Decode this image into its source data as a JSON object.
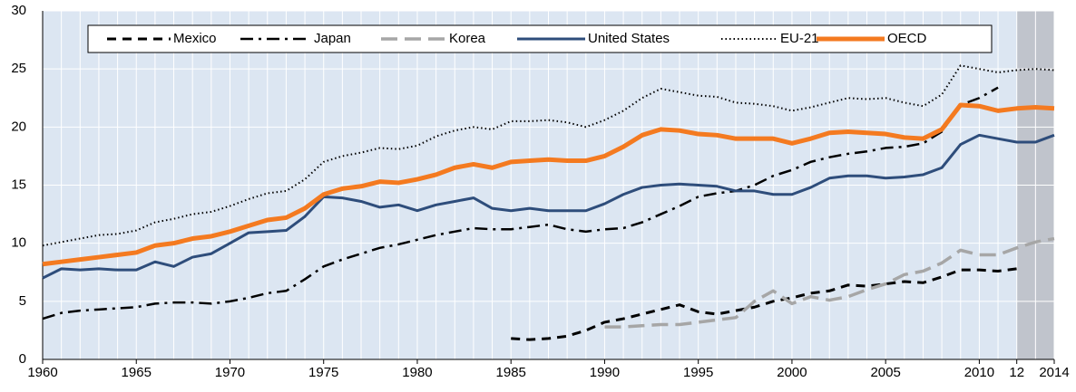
{
  "chart_data": {
    "type": "line",
    "x": [
      1960,
      1961,
      1962,
      1963,
      1964,
      1965,
      1966,
      1967,
      1968,
      1969,
      1970,
      1971,
      1972,
      1973,
      1974,
      1975,
      1976,
      1977,
      1978,
      1979,
      1980,
      1981,
      1982,
      1983,
      1984,
      1985,
      1986,
      1987,
      1988,
      1989,
      1990,
      1991,
      1992,
      1993,
      1994,
      1995,
      1996,
      1997,
      1998,
      1999,
      2000,
      2001,
      2002,
      2003,
      2004,
      2005,
      2006,
      2007,
      2008,
      2009,
      2010,
      2011,
      2012,
      2013,
      2014
    ],
    "xlim": [
      1960,
      2014
    ],
    "xticks": [
      1960,
      1965,
      1970,
      1975,
      1980,
      1985,
      1990,
      1995,
      2000,
      2005,
      2010,
      {
        "value": 2012,
        "label": "12"
      },
      2014
    ],
    "ylim": [
      0,
      30
    ],
    "yticks": [
      0,
      5,
      10,
      15,
      20,
      25,
      30
    ],
    "background": "#dce6f2",
    "grid": true,
    "shaded_xrange": [
      2012,
      2014
    ],
    "legend": "top",
    "series": [
      {
        "name": "Mexico",
        "color": "#000000",
        "style": "dashed",
        "values": [
          null,
          null,
          null,
          null,
          null,
          null,
          null,
          null,
          null,
          null,
          null,
          null,
          null,
          null,
          null,
          null,
          null,
          null,
          null,
          null,
          null,
          null,
          null,
          null,
          null,
          1.8,
          1.7,
          1.8,
          2.0,
          2.5,
          3.2,
          3.5,
          3.9,
          4.3,
          4.7,
          4.1,
          3.9,
          4.2,
          4.5,
          5.0,
          5.3,
          5.7,
          5.9,
          6.4,
          6.3,
          6.5,
          6.7,
          6.6,
          7.1,
          7.7,
          7.7,
          7.6,
          7.8,
          null,
          null
        ]
      },
      {
        "name": "Japan",
        "color": "#000000",
        "style": "dashdot",
        "values": [
          3.5,
          4.0,
          4.2,
          4.3,
          4.4,
          4.5,
          4.8,
          4.9,
          4.9,
          4.8,
          5.0,
          5.3,
          5.7,
          5.9,
          6.9,
          8.0,
          8.6,
          9.1,
          9.6,
          9.9,
          10.3,
          10.7,
          11.0,
          11.3,
          11.2,
          11.2,
          11.4,
          11.6,
          11.2,
          11.0,
          11.2,
          11.3,
          11.8,
          12.5,
          13.2,
          14.0,
          14.3,
          14.5,
          15.0,
          15.8,
          16.3,
          17.0,
          17.4,
          17.7,
          17.9,
          18.2,
          18.3,
          18.6,
          19.6,
          21.9,
          22.5,
          23.4,
          null,
          null,
          null
        ]
      },
      {
        "name": "Korea",
        "color": "#a6a6a6",
        "style": "longdash",
        "values": [
          null,
          null,
          null,
          null,
          null,
          null,
          null,
          null,
          null,
          null,
          null,
          null,
          null,
          null,
          null,
          null,
          null,
          null,
          null,
          null,
          null,
          null,
          null,
          null,
          null,
          null,
          null,
          null,
          null,
          null,
          2.8,
          2.8,
          2.9,
          3.0,
          3.0,
          3.2,
          3.4,
          3.6,
          5.0,
          5.9,
          4.8,
          5.4,
          5.1,
          5.4,
          6.0,
          6.5,
          7.3,
          7.6,
          8.3,
          9.4,
          9.0,
          9.0,
          9.6,
          10.1,
          10.4
        ]
      },
      {
        "name": "United States",
        "color": "#2e4d7b",
        "style": "solid",
        "values": [
          7.0,
          7.8,
          7.7,
          7.8,
          7.7,
          7.7,
          8.4,
          8.0,
          8.8,
          9.1,
          10.0,
          10.9,
          11.0,
          11.1,
          12.3,
          14.0,
          13.9,
          13.6,
          13.1,
          13.3,
          12.8,
          13.3,
          13.6,
          13.9,
          13.0,
          12.8,
          13.0,
          12.8,
          12.8,
          12.8,
          13.4,
          14.2,
          14.8,
          15.0,
          15.1,
          15.0,
          14.9,
          14.5,
          14.5,
          14.2,
          14.2,
          14.8,
          15.6,
          15.8,
          15.8,
          15.6,
          15.7,
          15.9,
          16.5,
          18.5,
          19.3,
          19.0,
          18.7,
          18.7,
          19.3
        ]
      },
      {
        "name": "EU-21",
        "color": "#000000",
        "style": "dotted",
        "values": [
          9.8,
          10.1,
          10.4,
          10.7,
          10.8,
          11.1,
          11.8,
          12.1,
          12.5,
          12.7,
          13.2,
          13.8,
          14.3,
          14.5,
          15.5,
          17.0,
          17.5,
          17.8,
          18.2,
          18.1,
          18.4,
          19.2,
          19.7,
          20.0,
          19.8,
          20.5,
          20.5,
          20.6,
          20.4,
          20.0,
          20.6,
          21.4,
          22.5,
          23.3,
          23.0,
          22.7,
          22.6,
          22.1,
          22.0,
          21.8,
          21.4,
          21.7,
          22.1,
          22.5,
          22.4,
          22.5,
          22.1,
          21.8,
          22.8,
          25.3,
          25.0,
          24.7,
          24.9,
          25.0,
          24.9
        ]
      },
      {
        "name": "OECD",
        "color": "#f47a20",
        "style": "thick",
        "values": [
          8.2,
          8.4,
          8.6,
          8.8,
          9.0,
          9.2,
          9.8,
          10.0,
          10.4,
          10.6,
          11.0,
          11.5,
          12.0,
          12.2,
          13.0,
          14.2,
          14.7,
          14.9,
          15.3,
          15.2,
          15.5,
          15.9,
          16.5,
          16.8,
          16.5,
          17.0,
          17.1,
          17.2,
          17.1,
          17.1,
          17.5,
          18.3,
          19.3,
          19.8,
          19.7,
          19.4,
          19.3,
          19.0,
          19.0,
          19.0,
          18.6,
          19.0,
          19.5,
          19.6,
          19.5,
          19.4,
          19.1,
          19.0,
          19.8,
          21.9,
          21.8,
          21.4,
          21.6,
          21.7,
          21.6
        ]
      }
    ]
  }
}
